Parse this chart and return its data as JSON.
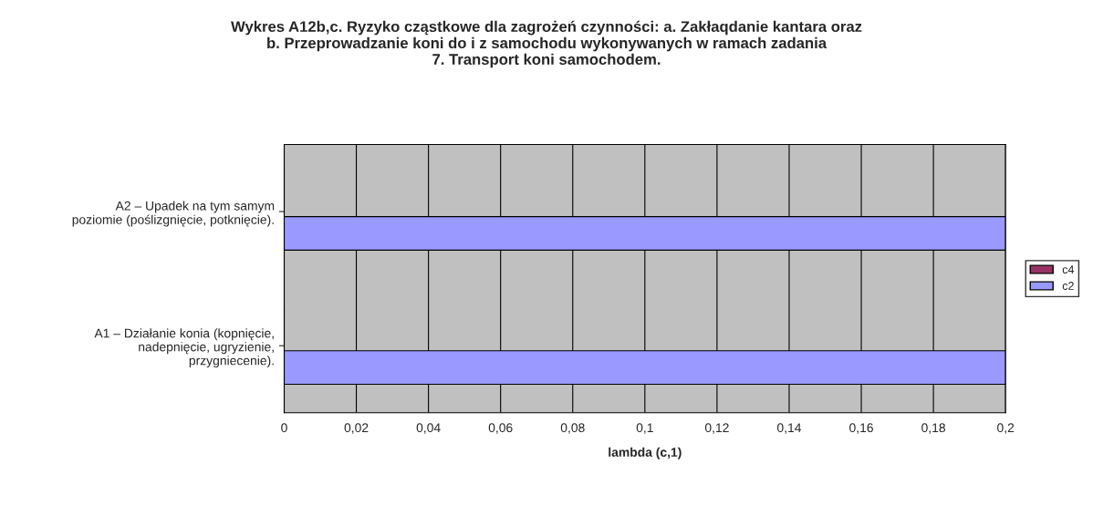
{
  "chart_data": {
    "type": "bar",
    "orientation": "horizontal",
    "title": "Wykres A12b,c. Ryzyko cząstkowe dla zagrożeń czynności: a. Zakłaqdanie kantara oraz\nb. Przeprowadzanie koni do i z samochodu wykonywanych w ramach zadania\n7. Transport koni samochodem.",
    "xlabel": "lambda (c,1)",
    "categories": [
      "A2 – Upadek na tym samym\npoziomie (poślizgnięcie, potknięcie).",
      "A1 – Działanie konia (kopnięcie,\nnadepnięcie, ugryzienie,\nprzygniecenie)."
    ],
    "series": [
      {
        "name": "c4",
        "color": "#993366",
        "values": [
          0,
          0
        ]
      },
      {
        "name": "c2",
        "color": "#9999ff",
        "values": [
          0.2,
          0.2
        ]
      }
    ],
    "xlim": [
      0,
      0.2
    ],
    "xticks": [
      0,
      {
        "value": 0.02,
        "label": "0,02"
      },
      {
        "value": 0.04,
        "label": "0,04"
      },
      {
        "value": 0.06,
        "label": "0,06"
      },
      {
        "value": 0.08,
        "label": "0,08"
      },
      {
        "value": 0.1,
        "label": "0,1"
      },
      {
        "value": 0.12,
        "label": "0,12"
      },
      {
        "value": 0.14,
        "label": "0,14"
      },
      {
        "value": 0.16,
        "label": "0,16"
      },
      {
        "value": 0.18,
        "label": "0,18"
      },
      {
        "value": 0.2,
        "label": "0,2"
      }
    ],
    "grid": "x",
    "legend": "right"
  }
}
